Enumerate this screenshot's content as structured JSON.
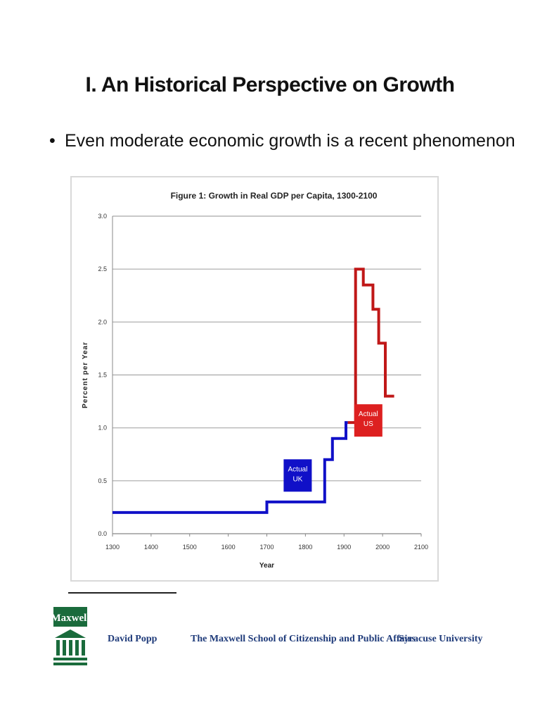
{
  "slide": {
    "title": "I. An Historical Perspective on Growth",
    "bullet_marker": "•",
    "bullet": "Even moderate economic growth is a recent phenomenon"
  },
  "chart_data": {
    "type": "line",
    "title": "Figure 1: Growth in Real GDP per Capita, 1300-2100",
    "xlabel": "Year",
    "ylabel": "Percent per Year",
    "xlim": [
      1300,
      2100
    ],
    "ylim": [
      0,
      3.0
    ],
    "x_ticks": [
      "1300",
      "1400",
      "1500",
      "1600",
      "1700",
      "1800",
      "1900",
      "2000",
      "2100"
    ],
    "y_ticks": [
      "0.0",
      "0.5",
      "1.0",
      "1.5",
      "2.0",
      "2.5",
      "3.0"
    ],
    "grid": "horizontal",
    "series": [
      {
        "name": "Actual UK",
        "color": "#1010c8",
        "step_points": [
          [
            1300,
            0.2
          ],
          [
            1700,
            0.2
          ],
          [
            1700,
            0.3
          ],
          [
            1850,
            0.3
          ],
          [
            1850,
            0.7
          ],
          [
            1870,
            0.7
          ],
          [
            1870,
            0.9
          ],
          [
            1905,
            0.9
          ],
          [
            1905,
            1.05
          ],
          [
            1910,
            1.05
          ]
        ]
      },
      {
        "name": "Actual US",
        "color": "#c01818",
        "step_points": [
          [
            1910,
            1.05
          ],
          [
            1930,
            1.05
          ],
          [
            1930,
            2.5
          ],
          [
            1950,
            2.5
          ],
          [
            1950,
            2.35
          ],
          [
            1975,
            2.35
          ],
          [
            1975,
            2.12
          ],
          [
            1990,
            2.12
          ],
          [
            1990,
            1.8
          ],
          [
            2007,
            1.8
          ],
          [
            2007,
            1.3
          ],
          [
            2030,
            1.3
          ]
        ]
      }
    ],
    "annotations": [
      {
        "label_lines": [
          "Actual",
          "UK"
        ],
        "color": "#1010c8",
        "x": 1780,
        "y": 0.55
      },
      {
        "label_lines": [
          "Actual",
          "US"
        ],
        "color": "#dd2020",
        "x": 1963,
        "y": 1.07
      }
    ]
  },
  "footer": {
    "logo_text": "Maxwell",
    "author": "David Popp",
    "school": "The Maxwell School of Citizenship and Public Affairs",
    "university": "Syracuse University",
    "logo_color": "#1a6b3c"
  }
}
